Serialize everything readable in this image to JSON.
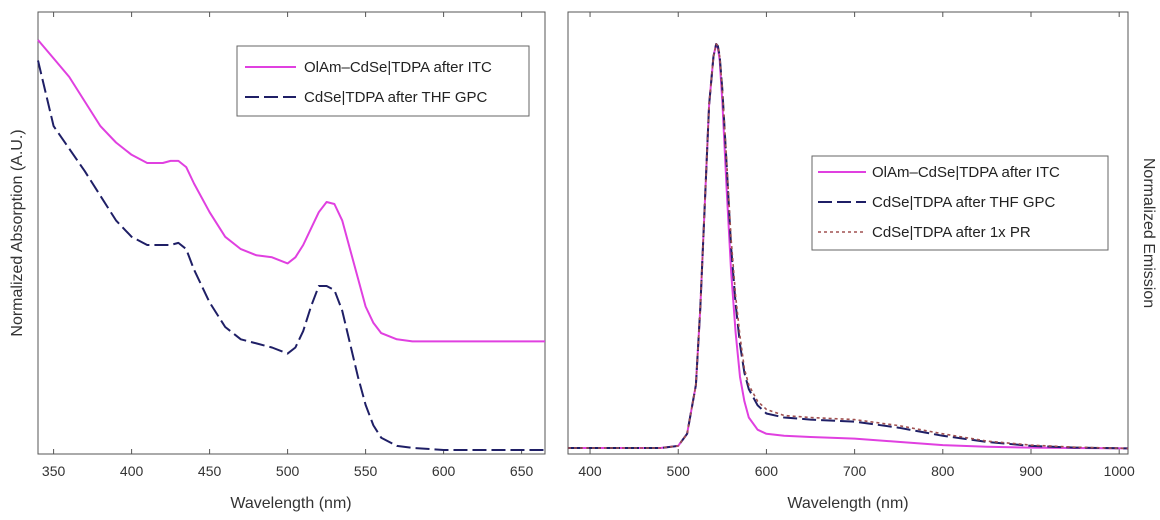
{
  "chart_data": [
    {
      "type": "line",
      "title": "",
      "xlabel": "Wavelength (nm)",
      "ylabel": "Normalized Absorption (A.U.)",
      "xlim": [
        340,
        665
      ],
      "ylim": [
        0,
        1
      ],
      "xticks": [
        350,
        400,
        450,
        500,
        550,
        600,
        650
      ],
      "yticks_shown": false,
      "grid": false,
      "legend_position": "top-right",
      "series": [
        {
          "name": "OlAm–CdSe|TDPA after ITC",
          "color": "#e040e0",
          "style": "solid",
          "x": [
            340,
            350,
            360,
            370,
            380,
            390,
            400,
            410,
            420,
            425,
            430,
            435,
            440,
            450,
            460,
            470,
            480,
            490,
            500,
            505,
            510,
            515,
            520,
            525,
            530,
            535,
            540,
            545,
            550,
            555,
            560,
            570,
            580,
            600,
            620,
            640,
            665
          ],
          "y": [
            1.0,
            0.955,
            0.91,
            0.85,
            0.79,
            0.75,
            0.72,
            0.7,
            0.7,
            0.705,
            0.705,
            0.69,
            0.65,
            0.58,
            0.52,
            0.49,
            0.475,
            0.47,
            0.455,
            0.47,
            0.5,
            0.54,
            0.58,
            0.605,
            0.6,
            0.56,
            0.49,
            0.42,
            0.35,
            0.31,
            0.285,
            0.27,
            0.265,
            0.265,
            0.265,
            0.265,
            0.265
          ]
        },
        {
          "name": "CdSe|TDPA after THF GPC",
          "color": "#1f1f66",
          "style": "dashed",
          "x": [
            340,
            350,
            360,
            370,
            380,
            390,
            400,
            410,
            420,
            425,
            430,
            435,
            440,
            450,
            460,
            470,
            480,
            490,
            500,
            505,
            510,
            515,
            520,
            525,
            530,
            535,
            540,
            545,
            550,
            555,
            560,
            570,
            580,
            600,
            620,
            640,
            665
          ],
          "y": [
            0.95,
            0.79,
            0.735,
            0.68,
            0.62,
            0.56,
            0.52,
            0.5,
            0.5,
            0.5,
            0.505,
            0.49,
            0.44,
            0.36,
            0.3,
            0.27,
            0.26,
            0.25,
            0.235,
            0.25,
            0.29,
            0.35,
            0.4,
            0.4,
            0.39,
            0.34,
            0.26,
            0.18,
            0.11,
            0.06,
            0.03,
            0.01,
            0.005,
            0.0,
            0.0,
            0.0,
            0.0
          ]
        }
      ]
    },
    {
      "type": "line",
      "title": "",
      "xlabel": "Wavelength (nm)",
      "ylabel": "Normalized Emission",
      "xlim": [
        375,
        1010
      ],
      "ylim": [
        0,
        1
      ],
      "xticks": [
        400,
        500,
        600,
        700,
        800,
        900,
        1000
      ],
      "yticks_shown": false,
      "grid": false,
      "legend_position": "right",
      "series": [
        {
          "name": "OlAm–CdSe|TDPA after ITC",
          "color": "#e040e0",
          "style": "solid",
          "x": [
            375,
            420,
            480,
            500,
            510,
            520,
            525,
            530,
            535,
            540,
            543,
            545,
            547,
            550,
            555,
            560,
            565,
            570,
            575,
            580,
            590,
            600,
            620,
            650,
            700,
            750,
            800,
            850,
            900,
            950,
            1010
          ],
          "y": [
            0.005,
            0.005,
            0.005,
            0.01,
            0.04,
            0.16,
            0.35,
            0.6,
            0.85,
            0.97,
            1.0,
            0.99,
            0.96,
            0.86,
            0.64,
            0.44,
            0.29,
            0.18,
            0.12,
            0.08,
            0.05,
            0.04,
            0.035,
            0.032,
            0.028,
            0.02,
            0.012,
            0.008,
            0.006,
            0.005,
            0.004
          ]
        },
        {
          "name": "CdSe|TDPA after THF GPC",
          "color": "#1f1f66",
          "style": "dashed",
          "x": [
            375,
            420,
            480,
            500,
            510,
            520,
            525,
            530,
            535,
            540,
            543,
            545,
            547,
            550,
            555,
            560,
            565,
            570,
            575,
            580,
            590,
            600,
            620,
            650,
            700,
            750,
            800,
            850,
            900,
            950,
            1010
          ],
          "y": [
            0.005,
            0.005,
            0.005,
            0.01,
            0.04,
            0.16,
            0.35,
            0.6,
            0.85,
            0.97,
            1.0,
            0.995,
            0.97,
            0.89,
            0.7,
            0.5,
            0.36,
            0.26,
            0.19,
            0.15,
            0.11,
            0.09,
            0.08,
            0.075,
            0.07,
            0.055,
            0.035,
            0.02,
            0.01,
            0.006,
            0.004
          ]
        },
        {
          "name": "CdSe|TDPA after 1x PR",
          "color": "#a05050",
          "style": "dotted",
          "x": [
            375,
            420,
            480,
            500,
            510,
            520,
            525,
            530,
            535,
            540,
            543,
            545,
            547,
            550,
            555,
            560,
            565,
            570,
            575,
            580,
            590,
            600,
            620,
            650,
            700,
            750,
            800,
            850,
            900,
            950,
            1010
          ],
          "y": [
            0.005,
            0.005,
            0.005,
            0.01,
            0.04,
            0.16,
            0.35,
            0.6,
            0.85,
            0.97,
            1.0,
            0.995,
            0.97,
            0.89,
            0.71,
            0.52,
            0.38,
            0.28,
            0.2,
            0.16,
            0.12,
            0.1,
            0.085,
            0.08,
            0.075,
            0.06,
            0.04,
            0.022,
            0.012,
            0.007,
            0.004
          ]
        }
      ]
    }
  ]
}
